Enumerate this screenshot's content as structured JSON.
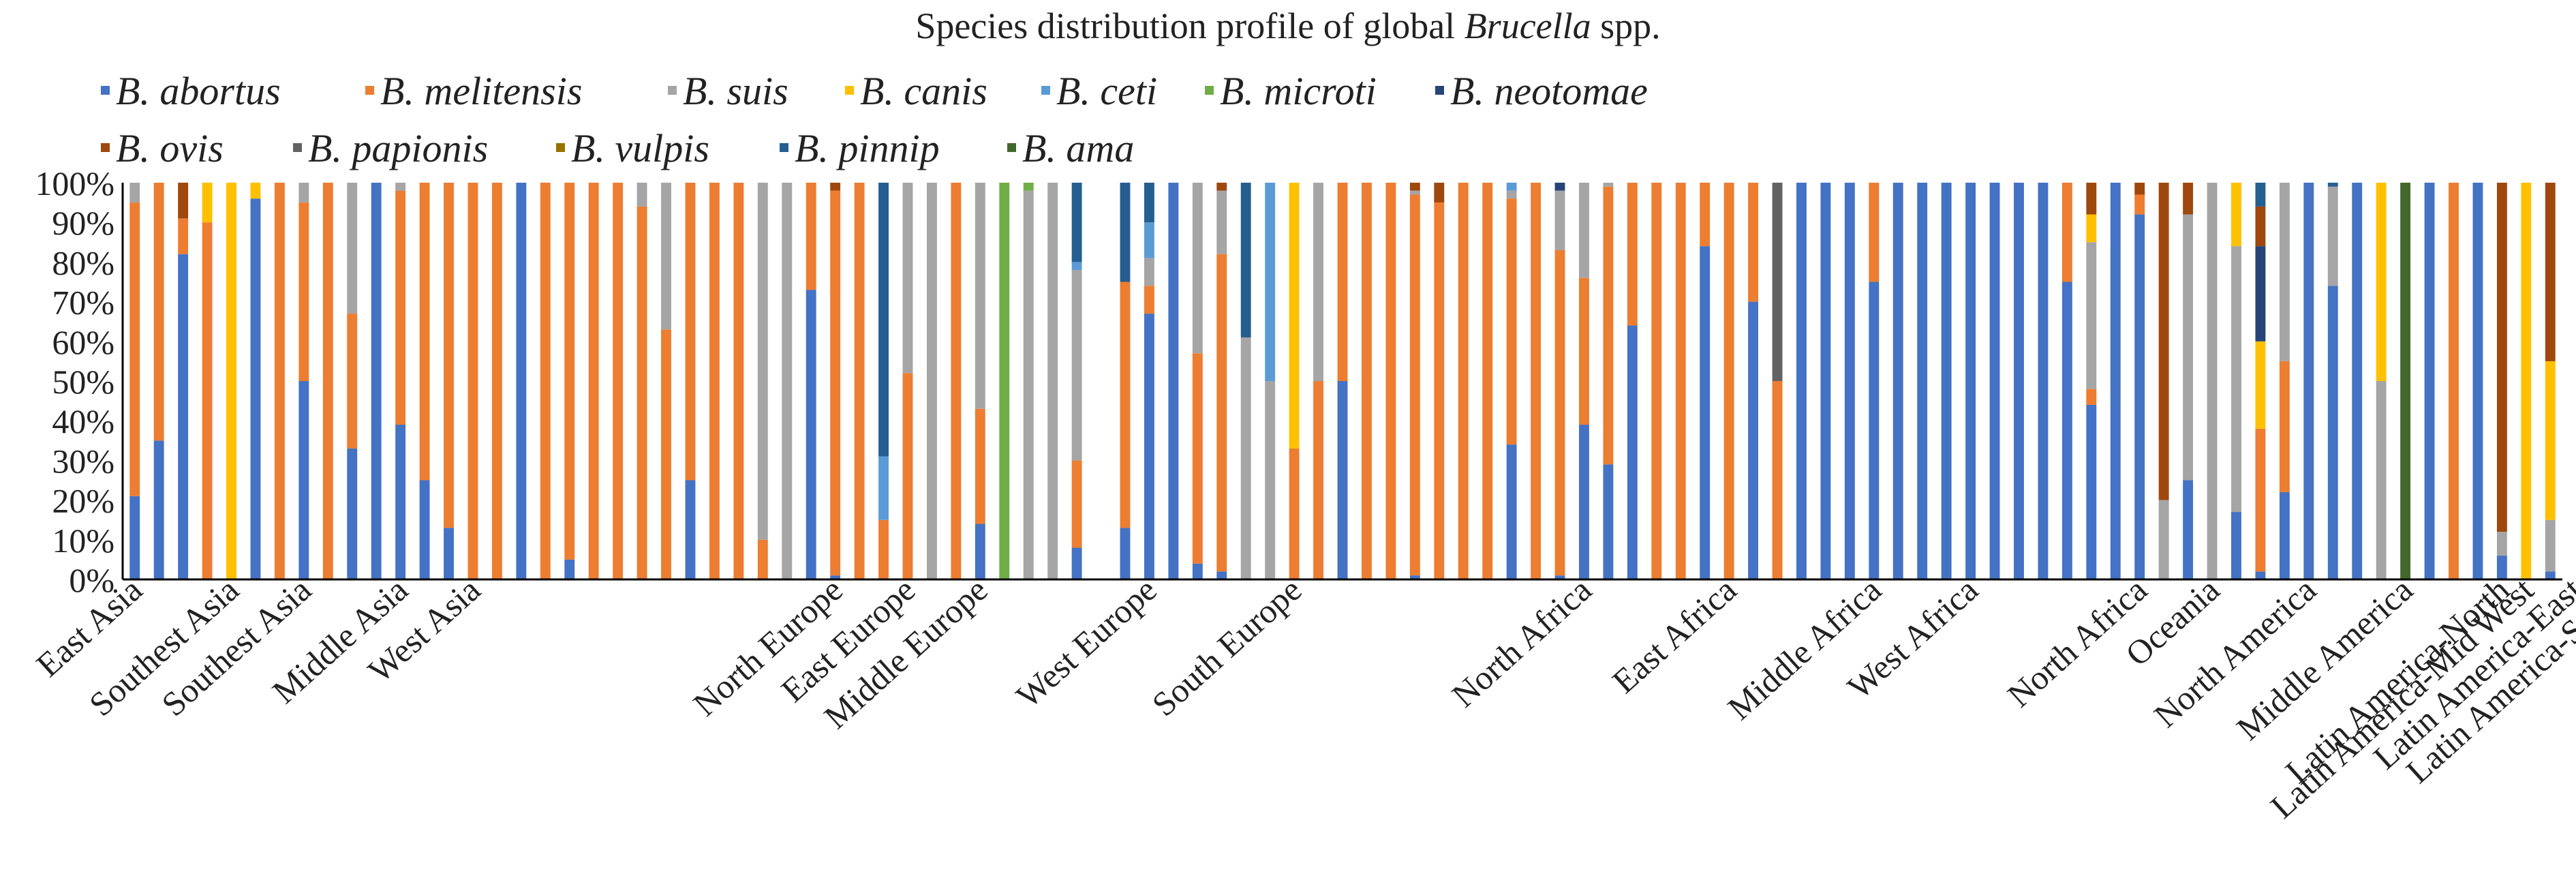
{
  "chart_data": {
    "type": "bar",
    "stacked": true,
    "title_parts": [
      "Species distribution profile of global ",
      "Brucella",
      " spp."
    ],
    "xlabel": "",
    "ylabel": "",
    "ylim": [
      0,
      100
    ],
    "y_ticks": [
      "0%",
      "10%",
      "20%",
      "30%",
      "40%",
      "50%",
      "60%",
      "70%",
      "80%",
      "90%",
      "100%"
    ],
    "legend_placement": "top-left",
    "series": [
      {
        "name": "B. abortus",
        "color": "#4472C4"
      },
      {
        "name": "B. melitensis",
        "color": "#ED7D31"
      },
      {
        "name": "B. suis",
        "color": "#A5A5A5"
      },
      {
        "name": "B. canis",
        "color": "#FFC000"
      },
      {
        "name": "B.  ceti",
        "color": "#5B9BD5"
      },
      {
        "name": "B.  microti",
        "color": "#70AD47"
      },
      {
        "name": "B.  neotomae",
        "color": "#264478"
      },
      {
        "name": "B.  ovis",
        "color": "#9E480E"
      },
      {
        "name": "B.  papionis",
        "color": "#636363"
      },
      {
        "name": "B.  vulpis",
        "color": "#997300"
      },
      {
        "name": "B.  pinnip",
        "color": "#255E91"
      },
      {
        "name": "B. ama",
        "color": "#43682B"
      }
    ],
    "region_labels": [
      {
        "label": "East Asia",
        "bar": 0
      },
      {
        "label": "Southest Asia",
        "bar": 4
      },
      {
        "label": "Southest Asia",
        "bar": 7
      },
      {
        "label": "Middle Asia",
        "bar": 11
      },
      {
        "label": "West Asia",
        "bar": 14
      },
      {
        "label": "North Europe",
        "bar": 29
      },
      {
        "label": "East Europe",
        "bar": 32
      },
      {
        "label": "Middle Europe",
        "bar": 35
      },
      {
        "label": "West Europe",
        "bar": 42
      },
      {
        "label": "South Europe",
        "bar": 48
      },
      {
        "label": "North Africa",
        "bar": 60
      },
      {
        "label": "East Africa",
        "bar": 66
      },
      {
        "label": "Middle Africa",
        "bar": 72
      },
      {
        "label": "West Africa",
        "bar": 76
      },
      {
        "label": "North Africa",
        "bar": 83
      },
      {
        "label": "Oceania",
        "bar": 86
      },
      {
        "label": "North America",
        "bar": 90
      },
      {
        "label": "Middle America",
        "bar": 94
      },
      {
        "label": "Latin America-North",
        "bar": 98
      },
      {
        "label": "Latin America-Mid West",
        "bar": 99
      },
      {
        "label": "Latin America-East",
        "bar": 101
      },
      {
        "label": "Latin America-South",
        "bar": 103
      }
    ],
    "bars": [
      [
        21,
        74,
        5,
        0,
        0,
        0,
        0,
        0,
        0,
        0,
        0,
        0
      ],
      [
        35,
        65,
        0,
        0,
        0,
        0,
        0,
        0,
        0,
        0,
        0,
        0
      ],
      [
        82,
        9,
        0,
        0,
        0,
        0,
        0,
        9,
        0,
        0,
        0,
        0
      ],
      [
        0,
        90,
        0,
        10,
        0,
        0,
        0,
        0,
        0,
        0,
        0,
        0
      ],
      [
        0,
        0,
        0,
        100,
        0,
        0,
        0,
        0,
        0,
        0,
        0,
        0
      ],
      [
        96,
        0,
        0,
        4,
        0,
        0,
        0,
        0,
        0,
        0,
        0,
        0
      ],
      [
        0,
        100,
        0,
        0,
        0,
        0,
        0,
        0,
        0,
        0,
        0,
        0
      ],
      [
        50,
        45,
        5,
        0,
        0,
        0,
        0,
        0,
        0,
        0,
        0,
        0
      ],
      [
        0,
        100,
        0,
        0,
        0,
        0,
        0,
        0,
        0,
        0,
        0,
        0
      ],
      [
        33,
        34,
        33,
        0,
        0,
        0,
        0,
        0,
        0,
        0,
        0,
        0
      ],
      [
        100,
        0,
        0,
        0,
        0,
        0,
        0,
        0,
        0,
        0,
        0,
        0
      ],
      [
        39,
        59,
        2,
        0,
        0,
        0,
        0,
        0,
        0,
        0,
        0,
        0
      ],
      [
        25,
        75,
        0,
        0,
        0,
        0,
        0,
        0,
        0,
        0,
        0,
        0
      ],
      [
        13,
        87,
        0,
        0,
        0,
        0,
        0,
        0,
        0,
        0,
        0,
        0
      ],
      [
        0,
        100,
        0,
        0,
        0,
        0,
        0,
        0,
        0,
        0,
        0,
        0
      ],
      [
        0,
        100,
        0,
        0,
        0,
        0,
        0,
        0,
        0,
        0,
        0,
        0
      ],
      [
        100,
        0,
        0,
        0,
        0,
        0,
        0,
        0,
        0,
        0,
        0,
        0
      ],
      [
        0,
        100,
        0,
        0,
        0,
        0,
        0,
        0,
        0,
        0,
        0,
        0
      ],
      [
        5,
        95,
        0,
        0,
        0,
        0,
        0,
        0,
        0,
        0,
        0,
        0
      ],
      [
        0,
        100,
        0,
        0,
        0,
        0,
        0,
        0,
        0,
        0,
        0,
        0
      ],
      [
        0,
        100,
        0,
        0,
        0,
        0,
        0,
        0,
        0,
        0,
        0,
        0
      ],
      [
        0,
        94,
        6,
        0,
        0,
        0,
        0,
        0,
        0,
        0,
        0,
        0
      ],
      [
        0,
        63,
        37,
        0,
        0,
        0,
        0,
        0,
        0,
        0,
        0,
        0
      ],
      [
        25,
        75,
        0,
        0,
        0,
        0,
        0,
        0,
        0,
        0,
        0,
        0
      ],
      [
        0,
        100,
        0,
        0,
        0,
        0,
        0,
        0,
        0,
        0,
        0,
        0
      ],
      [
        0,
        100,
        0,
        0,
        0,
        0,
        0,
        0,
        0,
        0,
        0,
        0
      ],
      [
        0,
        10,
        90,
        0,
        0,
        0,
        0,
        0,
        0,
        0,
        0,
        0
      ],
      [
        0,
        0,
        100,
        0,
        0,
        0,
        0,
        0,
        0,
        0,
        0,
        0
      ],
      [
        73,
        27,
        0,
        0,
        0,
        0,
        0,
        0,
        0,
        0,
        0,
        0
      ],
      [
        1,
        97,
        0,
        0,
        0,
        0,
        0,
        2,
        0,
        0,
        0,
        0
      ],
      [
        0,
        100,
        0,
        0,
        0,
        0,
        0,
        0,
        0,
        0,
        0,
        0
      ],
      [
        0,
        15,
        0,
        0,
        16,
        0,
        0,
        0,
        0,
        0,
        69,
        0
      ],
      [
        0,
        52,
        48,
        0,
        0,
        0,
        0,
        0,
        0,
        0,
        0,
        0
      ],
      [
        0,
        0,
        100,
        0,
        0,
        0,
        0,
        0,
        0,
        0,
        0,
        0
      ],
      [
        0,
        100,
        0,
        0,
        0,
        0,
        0,
        0,
        0,
        0,
        0,
        0
      ],
      [
        14,
        29,
        57,
        0,
        0,
        0,
        0,
        0,
        0,
        0,
        0,
        0
      ],
      [
        0,
        0,
        0,
        0,
        0,
        100,
        0,
        0,
        0,
        0,
        0,
        0
      ],
      [
        0,
        0,
        98,
        0,
        0,
        2,
        0,
        0,
        0,
        0,
        0,
        0
      ],
      [
        0,
        0,
        100,
        0,
        0,
        0,
        0,
        0,
        0,
        0,
        0,
        0
      ],
      [
        8,
        22,
        48,
        0,
        2,
        0,
        0,
        0,
        0,
        0,
        20,
        0
      ],
      [
        0,
        0,
        0,
        0,
        0,
        0,
        0,
        0,
        0,
        0,
        0,
        0
      ],
      [
        13,
        62,
        0,
        0,
        0,
        0,
        0,
        0,
        0,
        0,
        25,
        0
      ],
      [
        67,
        7,
        7,
        0,
        9,
        0,
        0,
        0,
        0,
        0,
        10,
        0
      ],
      [
        100,
        0,
        0,
        0,
        0,
        0,
        0,
        0,
        0,
        0,
        0,
        0
      ],
      [
        4,
        53,
        43,
        0,
        0,
        0,
        0,
        0,
        0,
        0,
        0,
        0
      ],
      [
        2,
        80,
        16,
        0,
        0,
        0,
        0,
        2,
        0,
        0,
        0,
        0
      ],
      [
        0,
        0,
        61,
        0,
        0,
        0,
        0,
        0,
        0,
        0,
        39,
        0
      ],
      [
        0,
        0,
        50,
        0,
        50,
        0,
        0,
        0,
        0,
        0,
        0,
        0
      ],
      [
        0,
        33,
        0,
        67,
        0,
        0,
        0,
        0,
        0,
        0,
        0,
        0
      ],
      [
        0,
        50,
        50,
        0,
        0,
        0,
        0,
        0,
        0,
        0,
        0,
        0
      ],
      [
        50,
        50,
        0,
        0,
        0,
        0,
        0,
        0,
        0,
        0,
        0,
        0
      ],
      [
        0,
        100,
        0,
        0,
        0,
        0,
        0,
        0,
        0,
        0,
        0,
        0
      ],
      [
        0,
        100,
        0,
        0,
        0,
        0,
        0,
        0,
        0,
        0,
        0,
        0
      ],
      [
        1,
        96,
        1,
        0,
        0,
        0,
        0,
        2,
        0,
        0,
        0,
        0
      ],
      [
        0,
        95,
        0,
        0,
        0,
        0,
        0,
        5,
        0,
        0,
        0,
        0
      ],
      [
        0,
        100,
        0,
        0,
        0,
        0,
        0,
        0,
        0,
        0,
        0,
        0
      ],
      [
        0,
        100,
        0,
        0,
        0,
        0,
        0,
        0,
        0,
        0,
        0,
        0
      ],
      [
        34,
        62,
        2,
        0,
        2,
        0,
        0,
        0,
        0,
        0,
        0,
        0
      ],
      [
        0,
        100,
        0,
        0,
        0,
        0,
        0,
        0,
        0,
        0,
        0,
        0
      ],
      [
        1,
        82,
        15,
        0,
        0,
        0,
        2,
        0,
        0,
        0,
        0,
        0
      ],
      [
        39,
        37,
        24,
        0,
        0,
        0,
        0,
        0,
        0,
        0,
        0,
        0
      ],
      [
        29,
        70,
        1,
        0,
        0,
        0,
        0,
        0,
        0,
        0,
        0,
        0
      ],
      [
        64,
        36,
        0,
        0,
        0,
        0,
        0,
        0,
        0,
        0,
        0,
        0
      ],
      [
        0,
        100,
        0,
        0,
        0,
        0,
        0,
        0,
        0,
        0,
        0,
        0
      ],
      [
        0,
        100,
        0,
        0,
        0,
        0,
        0,
        0,
        0,
        0,
        0,
        0
      ],
      [
        84,
        16,
        0,
        0,
        0,
        0,
        0,
        0,
        0,
        0,
        0,
        0
      ],
      [
        0,
        100,
        0,
        0,
        0,
        0,
        0,
        0,
        0,
        0,
        0,
        0
      ],
      [
        70,
        30,
        0,
        0,
        0,
        0,
        0,
        0,
        0,
        0,
        0,
        0
      ],
      [
        0,
        50,
        0,
        0,
        0,
        0,
        0,
        0,
        50,
        0,
        0,
        0
      ],
      [
        100,
        0,
        0,
        0,
        0,
        0,
        0,
        0,
        0,
        0,
        0,
        0
      ],
      [
        100,
        0,
        0,
        0,
        0,
        0,
        0,
        0,
        0,
        0,
        0,
        0
      ],
      [
        100,
        0,
        0,
        0,
        0,
        0,
        0,
        0,
        0,
        0,
        0,
        0
      ],
      [
        75,
        25,
        0,
        0,
        0,
        0,
        0,
        0,
        0,
        0,
        0,
        0
      ],
      [
        100,
        0,
        0,
        0,
        0,
        0,
        0,
        0,
        0,
        0,
        0,
        0
      ],
      [
        100,
        0,
        0,
        0,
        0,
        0,
        0,
        0,
        0,
        0,
        0,
        0
      ],
      [
        100,
        0,
        0,
        0,
        0,
        0,
        0,
        0,
        0,
        0,
        0,
        0
      ],
      [
        100,
        0,
        0,
        0,
        0,
        0,
        0,
        0,
        0,
        0,
        0,
        0
      ],
      [
        100,
        0,
        0,
        0,
        0,
        0,
        0,
        0,
        0,
        0,
        0,
        0
      ],
      [
        100,
        0,
        0,
        0,
        0,
        0,
        0,
        0,
        0,
        0,
        0,
        0
      ],
      [
        100,
        0,
        0,
        0,
        0,
        0,
        0,
        0,
        0,
        0,
        0,
        0
      ],
      [
        75,
        25,
        0,
        0,
        0,
        0,
        0,
        0,
        0,
        0,
        0,
        0
      ],
      [
        44,
        4,
        37,
        7,
        0,
        0,
        0,
        8,
        0,
        0,
        0,
        0
      ],
      [
        100,
        0,
        0,
        0,
        0,
        0,
        0,
        0,
        0,
        0,
        0,
        0
      ],
      [
        92,
        5,
        0,
        0,
        0,
        0,
        0,
        3,
        0,
        0,
        0,
        0
      ],
      [
        0,
        0,
        20,
        0,
        0,
        0,
        0,
        80,
        0,
        0,
        0,
        0
      ],
      [
        25,
        0,
        67,
        0,
        0,
        0,
        0,
        8,
        0,
        0,
        0,
        0
      ],
      [
        0,
        0,
        100,
        0,
        0,
        0,
        0,
        0,
        0,
        0,
        0,
        0
      ],
      [
        17,
        0,
        67,
        16,
        0,
        0,
        0,
        0,
        0,
        0,
        0,
        0
      ],
      [
        2,
        36,
        0,
        22,
        0,
        0,
        24,
        10,
        0,
        0,
        6,
        0
      ],
      [
        22,
        33,
        45,
        0,
        0,
        0,
        0,
        0,
        0,
        0,
        0,
        0
      ],
      [
        100,
        0,
        0,
        0,
        0,
        0,
        0,
        0,
        0,
        0,
        0,
        0
      ],
      [
        74,
        0,
        25,
        0,
        0,
        0,
        0,
        0,
        0,
        0,
        1,
        0
      ],
      [
        100,
        0,
        0,
        0,
        0,
        0,
        0,
        0,
        0,
        0,
        0,
        0
      ],
      [
        0,
        0,
        50,
        50,
        0,
        0,
        0,
        0,
        0,
        0,
        0,
        0
      ],
      [
        0,
        0,
        0,
        0,
        0,
        0,
        0,
        0,
        0,
        0,
        0,
        100
      ],
      [
        100,
        0,
        0,
        0,
        0,
        0,
        0,
        0,
        0,
        0,
        0,
        0
      ],
      [
        0,
        100,
        0,
        0,
        0,
        0,
        0,
        0,
        0,
        0,
        0,
        0
      ],
      [
        100,
        0,
        0,
        0,
        0,
        0,
        0,
        0,
        0,
        0,
        0,
        0
      ],
      [
        6,
        0,
        6,
        0,
        0,
        0,
        0,
        88,
        0,
        0,
        0,
        0
      ],
      [
        0,
        0,
        0,
        100,
        0,
        0,
        0,
        0,
        0,
        0,
        0,
        0
      ],
      [
        2,
        0,
        13,
        40,
        0,
        0,
        0,
        45,
        0,
        0,
        0,
        0
      ]
    ]
  }
}
